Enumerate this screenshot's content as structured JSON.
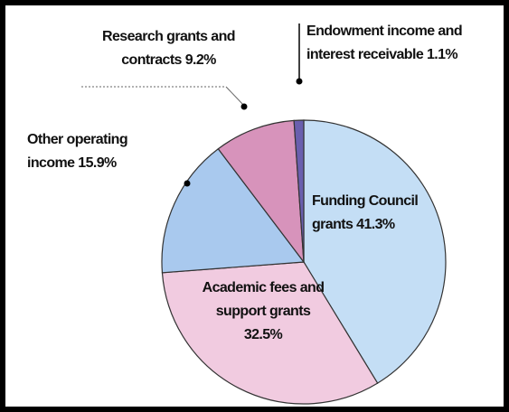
{
  "chart_data": {
    "type": "pie",
    "categories": [
      "Funding Council grants",
      "Academic fees and support grants",
      "Other operating income",
      "Research grants and contracts",
      "Endowment income and interest receivable"
    ],
    "values": [
      41.3,
      32.5,
      15.9,
      9.2,
      1.1
    ],
    "value_labels": [
      "41.3%",
      "32.5%",
      "15.9%",
      "9.2%",
      "1.1%"
    ],
    "colors": [
      "#c4def5",
      "#f1cbe0",
      "#a9c9ee",
      "#d793bb",
      "#6a5fae"
    ]
  }
}
